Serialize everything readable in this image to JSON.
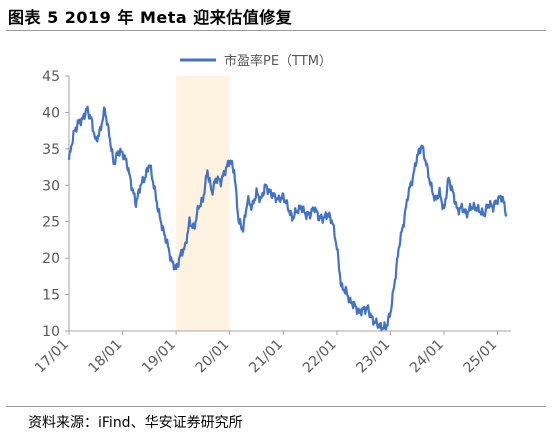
{
  "title": "图表 5 2019 年 Meta  迎来估值修复",
  "source": "资料来源：iFind、华安证券研究所",
  "colors": {
    "line": "#4472c4",
    "highlight": "#fdf3e0",
    "axis": "#a6a6a6"
  },
  "chart_data": {
    "type": "line",
    "title": "",
    "xlabel": "",
    "ylabel": "",
    "ylim": [
      10,
      45
    ],
    "yticks": [
      "10",
      "15",
      "20",
      "25",
      "30",
      "35",
      "40",
      "45"
    ],
    "xticks": [
      "17/01",
      "18/01",
      "19/01",
      "20/01",
      "21/01",
      "22/01",
      "23/01",
      "24/01",
      "25/01"
    ],
    "legend": {
      "position": "top-center"
    },
    "highlight_range": [
      "19/01",
      "20/01"
    ],
    "series": [
      {
        "name": "市盈率PE（TTM）",
        "x": [
          "17/01",
          "17/02",
          "17/03",
          "17/04",
          "17/05",
          "17/06",
          "17/07",
          "17/08",
          "17/09",
          "17/10",
          "17/11",
          "17/12",
          "18/01",
          "18/02",
          "18/03",
          "18/04",
          "18/05",
          "18/06",
          "18/07",
          "18/08",
          "18/09",
          "18/10",
          "18/11",
          "18/12",
          "19/01",
          "19/02",
          "19/03",
          "19/04",
          "19/05",
          "19/06",
          "19/07",
          "19/08",
          "19/09",
          "19/10",
          "19/11",
          "19/12",
          "20/01",
          "20/02",
          "20/03",
          "20/04",
          "20/05",
          "20/06",
          "20/07",
          "20/08",
          "20/09",
          "20/10",
          "20/11",
          "20/12",
          "21/01",
          "21/02",
          "21/03",
          "21/04",
          "21/05",
          "21/06",
          "21/07",
          "21/08",
          "21/09",
          "21/10",
          "21/11",
          "21/12",
          "22/01",
          "22/02",
          "22/03",
          "22/04",
          "22/05",
          "22/06",
          "22/07",
          "22/08",
          "22/09",
          "22/10",
          "22/11",
          "22/12",
          "23/01",
          "23/02",
          "23/03",
          "23/04",
          "23/05",
          "23/06",
          "23/07",
          "23/08",
          "23/09",
          "23/10",
          "23/11",
          "23/12",
          "24/01",
          "24/02",
          "24/03",
          "24/04",
          "24/05",
          "24/06",
          "24/07",
          "24/08",
          "24/09",
          "24/10",
          "24/11",
          "24/12",
          "25/01",
          "25/02",
          "25/03"
        ],
        "values": [
          33.5,
          37,
          38.5,
          39,
          40.5,
          39,
          36,
          37.5,
          40.5,
          37,
          33,
          34.5,
          34.5,
          33,
          30,
          27.5,
          30,
          31,
          33,
          30,
          26.5,
          24,
          22,
          19.5,
          18.5,
          20.5,
          21.5,
          25,
          24,
          27,
          28,
          32,
          29,
          31,
          30.5,
          32,
          33.5,
          32,
          25,
          24,
          28,
          27,
          29,
          28,
          30,
          29,
          28.5,
          28,
          28.5,
          27,
          25.5,
          26.5,
          27,
          26,
          26,
          27,
          25.5,
          25.5,
          26,
          25,
          21.5,
          16,
          15.5,
          14,
          13.5,
          12.5,
          13,
          13,
          11.5,
          11,
          10.5,
          10.5,
          12.5,
          17,
          22,
          25,
          29,
          31,
          34,
          35.5,
          33,
          30,
          28,
          29,
          26.5,
          31,
          29,
          26.5,
          27,
          26,
          27,
          27,
          26.5,
          26,
          27.5,
          27,
          28,
          28.5,
          26
        ]
      }
    ]
  }
}
